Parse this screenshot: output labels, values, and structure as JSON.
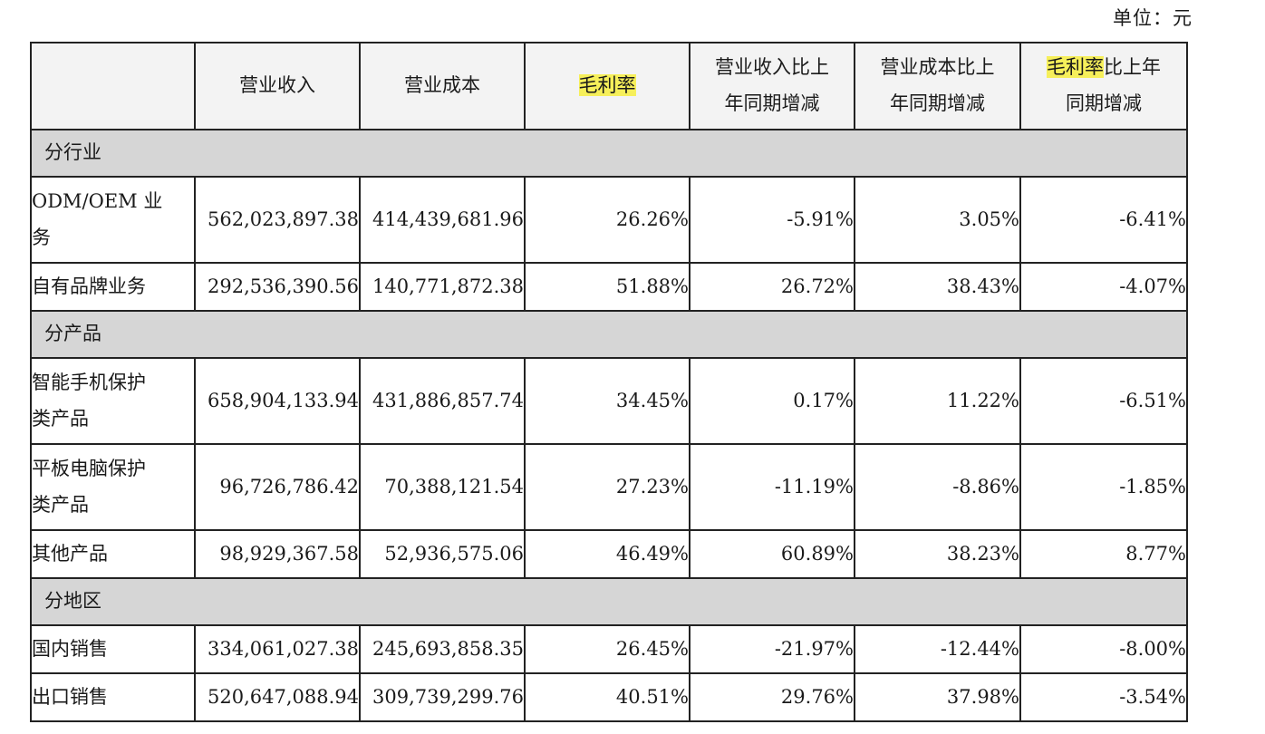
{
  "unit_label": "单位：元",
  "headers": {
    "blank": "",
    "revenue": "营业收入",
    "cost": "营业成本",
    "gross_margin": "毛利率",
    "revenue_yoy_line1": "营业收入比上",
    "revenue_yoy_line2": "年同期增减",
    "cost_yoy_line1": "营业成本比上",
    "cost_yoy_line2": "年同期增减",
    "margin_yoy_highlight": "毛利率",
    "margin_yoy_rest_line1": "比上年",
    "margin_yoy_line2": "同期增减"
  },
  "sections": [
    {
      "title": "分行业",
      "rows": [
        {
          "label_line1": "ODM/OEM 业",
          "label_line2": "务",
          "revenue": "562,023,897.38",
          "cost": "414,439,681.96",
          "margin": "26.26%",
          "revenue_yoy": "-5.91%",
          "cost_yoy": "3.05%",
          "margin_yoy": "-6.41%"
        },
        {
          "label_line1": "自有品牌业务",
          "label_line2": "",
          "revenue": "292,536,390.56",
          "cost": "140,771,872.38",
          "margin": "51.88%",
          "revenue_yoy": "26.72%",
          "cost_yoy": "38.43%",
          "margin_yoy": "-4.07%"
        }
      ]
    },
    {
      "title": "分产品",
      "rows": [
        {
          "label_line1": "智能手机保护",
          "label_line2": "类产品",
          "revenue": "658,904,133.94",
          "cost": "431,886,857.74",
          "margin": "34.45%",
          "revenue_yoy": "0.17%",
          "cost_yoy": "11.22%",
          "margin_yoy": "-6.51%"
        },
        {
          "label_line1": "平板电脑保护",
          "label_line2": "类产品",
          "revenue": "96,726,786.42",
          "cost": "70,388,121.54",
          "margin": "27.23%",
          "revenue_yoy": "-11.19%",
          "cost_yoy": "-8.86%",
          "margin_yoy": "-1.85%"
        },
        {
          "label_line1": "其他产品",
          "label_line2": "",
          "revenue": "98,929,367.58",
          "cost": "52,936,575.06",
          "margin": "46.49%",
          "revenue_yoy": "60.89%",
          "cost_yoy": "38.23%",
          "margin_yoy": "8.77%"
        }
      ]
    },
    {
      "title": "分地区",
      "rows": [
        {
          "label_line1": "国内销售",
          "label_line2": "",
          "revenue": "334,061,027.38",
          "cost": "245,693,858.35",
          "margin": "26.45%",
          "revenue_yoy": "-21.97%",
          "cost_yoy": "-12.44%",
          "margin_yoy": "-8.00%"
        },
        {
          "label_line1": "出口销售",
          "label_line2": "",
          "revenue": "520,647,088.94",
          "cost": "309,739,299.76",
          "margin": "40.51%",
          "revenue_yoy": "29.76%",
          "cost_yoy": "37.98%",
          "margin_yoy": "-3.54%"
        }
      ]
    }
  ],
  "colors": {
    "highlight": "#f6ef5a",
    "section_bg": "#d6d6d6",
    "border": "#222222"
  }
}
